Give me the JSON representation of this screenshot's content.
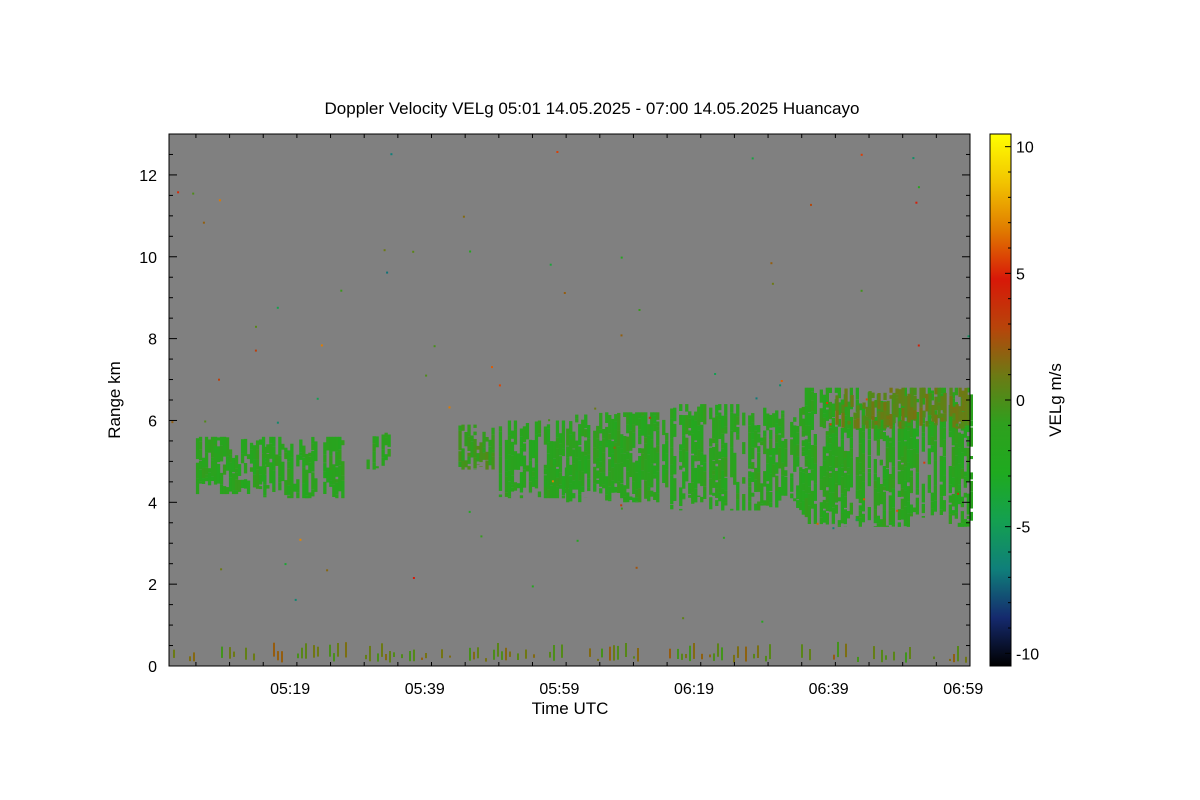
{
  "chart_data": {
    "type": "heatmap",
    "title": "Doppler Velocity VELg   05:01 14.05.2025 - 07:00 14.05.2025 Huancayo",
    "xlabel": "Time UTC",
    "ylabel": "Range km",
    "x_ticks": [
      "05:19",
      "05:39",
      "05:59",
      "06:19",
      "06:39",
      "06:59"
    ],
    "x_tick_minutes": [
      19,
      39,
      59,
      79,
      99,
      119
    ],
    "xlim_minutes": [
      1,
      120
    ],
    "y_ticks": [
      0,
      2,
      4,
      6,
      8,
      10,
      12
    ],
    "ylim": [
      0,
      13
    ],
    "background_color": "#808080",
    "colorbar": {
      "label": "VELg m/s",
      "ticks": [
        10,
        5,
        0,
        -5,
        -10
      ],
      "range": [
        -10.5,
        10.5
      ],
      "colors": [
        "#000000",
        "#152a6e",
        "#0f7f7a",
        "#14a050",
        "#1faa1f",
        "#2ea01e",
        "#6c7a14",
        "#b8440a",
        "#d81808",
        "#e07a00",
        "#f2c400",
        "#ffff00"
      ]
    },
    "velocity_patches": [
      {
        "t_start": 5,
        "t_end": 15,
        "range_low": 4.2,
        "range_high": 5.6,
        "velocity": -1.5
      },
      {
        "t_start": 15,
        "t_end": 27,
        "range_low": 4.1,
        "range_high": 5.6,
        "velocity": -1.5
      },
      {
        "t_start": 29,
        "t_end": 34,
        "range_low": 4.8,
        "range_high": 5.7,
        "velocity": -1.5
      },
      {
        "t_start": 44,
        "t_end": 49,
        "range_low": 4.8,
        "range_high": 5.9,
        "velocity": -0.5
      },
      {
        "t_start": 50,
        "t_end": 60,
        "range_low": 4.1,
        "range_high": 6.0,
        "velocity": -1.5
      },
      {
        "t_start": 60,
        "t_end": 75,
        "range_low": 4.0,
        "range_high": 6.2,
        "velocity": -1.5
      },
      {
        "t_start": 75,
        "t_end": 95,
        "range_low": 3.8,
        "range_high": 6.4,
        "velocity": -1.5
      },
      {
        "t_start": 95,
        "t_end": 120,
        "range_low": 3.4,
        "range_high": 6.8,
        "velocity": -1.5
      },
      {
        "t_start": 100,
        "t_end": 120,
        "range_low": 5.8,
        "range_high": 6.8,
        "velocity": 0.5
      },
      {
        "t_start": 1,
        "t_end": 120,
        "range_low": 0.0,
        "range_high": 0.8,
        "velocity": 0.8
      }
    ]
  }
}
